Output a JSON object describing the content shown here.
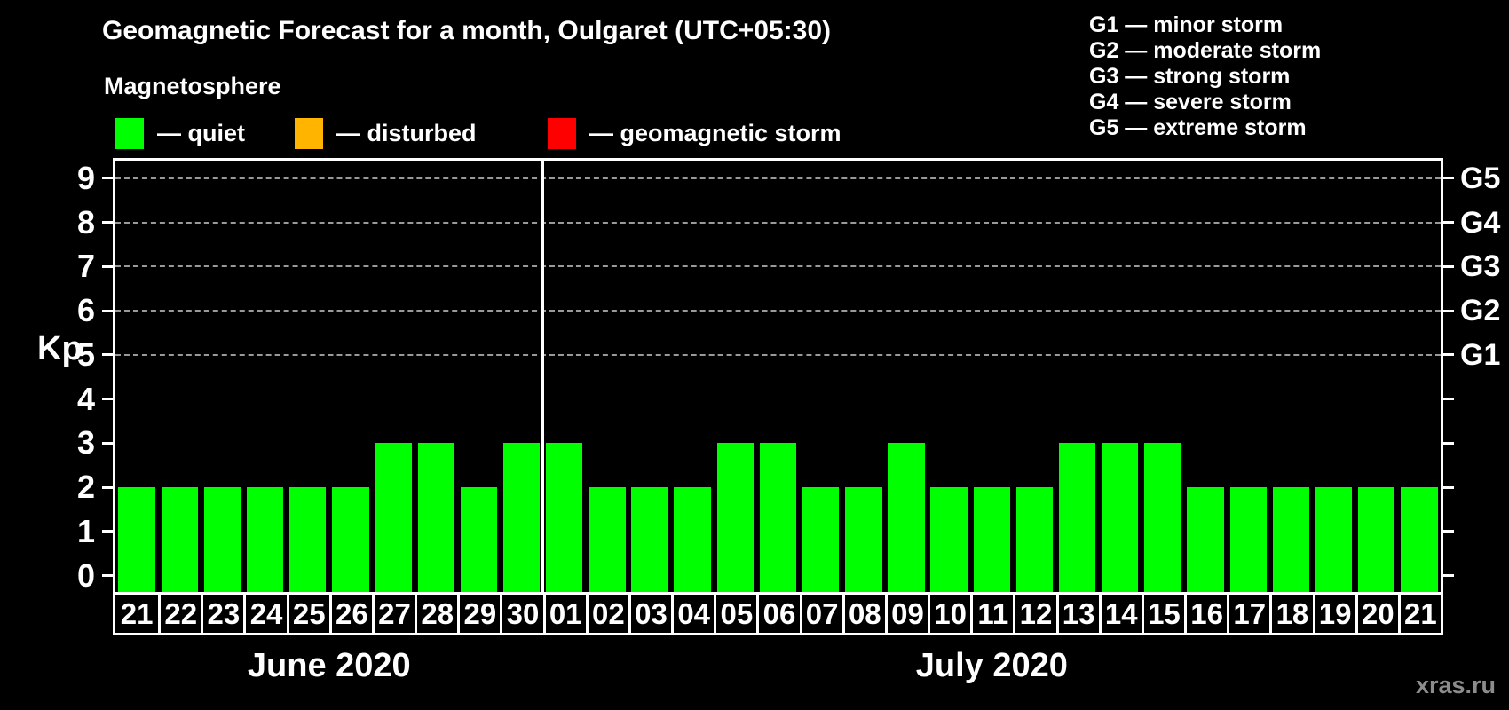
{
  "title": "Geomagnetic Forecast for a month, Oulgaret (UTC+05:30)",
  "magnetosphere": {
    "label": "Magnetosphere",
    "items": [
      {
        "name": "quiet",
        "label": "— quiet",
        "color": "#00ff00",
        "x": 130
      },
      {
        "name": "disturbed",
        "label": "— disturbed",
        "color": "#ffb400",
        "x": 332
      },
      {
        "name": "geomagnetic-storm",
        "label": "— geomagnetic storm",
        "color": "#ff0000",
        "x": 617
      }
    ]
  },
  "g_scale_legend": [
    "G1 — minor storm",
    "G2 — moderate storm",
    "G3 — strong storm",
    "G4 — severe storm",
    "G5 — extreme storm"
  ],
  "y_axis": {
    "label": "Kp",
    "ticks": [
      9,
      8,
      7,
      6,
      5,
      4,
      3,
      2,
      1,
      0
    ]
  },
  "right_axis": {
    "labels": [
      {
        "kp": 9,
        "label": "G5"
      },
      {
        "kp": 8,
        "label": "G4"
      },
      {
        "kp": 7,
        "label": "G3"
      },
      {
        "kp": 6,
        "label": "G2"
      },
      {
        "kp": 5,
        "label": "G1"
      }
    ]
  },
  "chart_data": {
    "type": "bar",
    "title": "Geomagnetic Forecast for a month, Oulgaret (UTC+05:30)",
    "ylabel": "Kp",
    "ylim": [
      0,
      9
    ],
    "grid": "horizontal dashed lines at Kp 5,6,7,8,9 (G1–G5)",
    "legend_position": "top",
    "status_colors": {
      "quiet": "#00ff00",
      "disturbed": "#ffb400",
      "storm": "#ff0000"
    },
    "groups": [
      {
        "month": "June 2020",
        "days": [
          "21",
          "22",
          "23",
          "24",
          "25",
          "26",
          "27",
          "28",
          "29",
          "30"
        ],
        "values": [
          2,
          2,
          2,
          2,
          2,
          2,
          3,
          3,
          2,
          3
        ],
        "statuses": [
          "quiet",
          "quiet",
          "quiet",
          "quiet",
          "quiet",
          "quiet",
          "quiet",
          "quiet",
          "quiet",
          "quiet"
        ]
      },
      {
        "month": "July 2020",
        "days": [
          "01",
          "02",
          "03",
          "04",
          "05",
          "06",
          "07",
          "08",
          "09",
          "10",
          "11",
          "12",
          "13",
          "14",
          "15",
          "16",
          "17",
          "18",
          "19",
          "20",
          "21"
        ],
        "values": [
          3,
          2,
          2,
          2,
          3,
          3,
          2,
          2,
          3,
          2,
          2,
          2,
          3,
          3,
          3,
          2,
          2,
          2,
          2,
          2,
          2
        ],
        "statuses": [
          "quiet",
          "quiet",
          "quiet",
          "quiet",
          "quiet",
          "quiet",
          "quiet",
          "quiet",
          "quiet",
          "quiet",
          "quiet",
          "quiet",
          "quiet",
          "quiet",
          "quiet",
          "quiet",
          "quiet",
          "quiet",
          "quiet",
          "quiet",
          "quiet"
        ]
      }
    ]
  },
  "watermark": "xras.ru"
}
